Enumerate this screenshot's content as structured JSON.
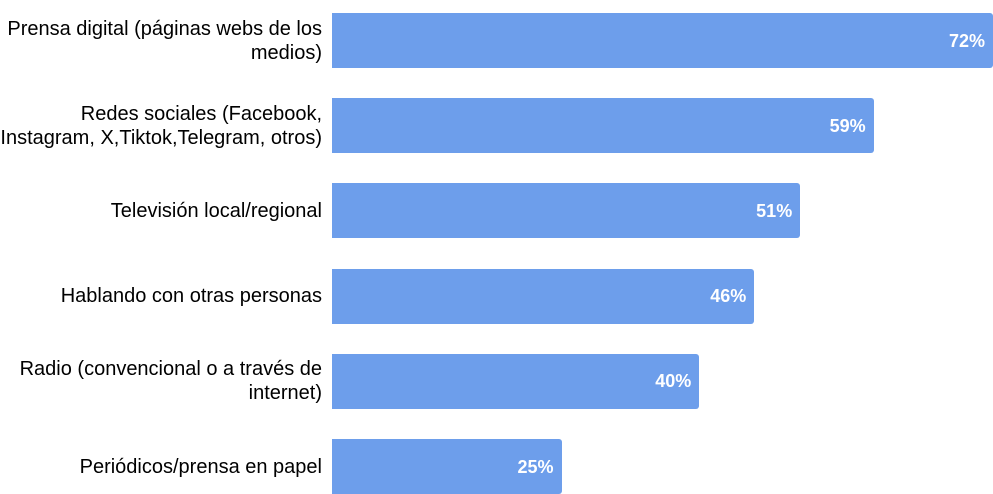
{
  "chart_data": {
    "type": "bar",
    "orientation": "horizontal",
    "categories": [
      "Prensa digital (páginas webs de los medios)",
      "Redes sociales (Facebook, Instagram, X,Tiktok,Telegram, otros)",
      "Televisión local/regional",
      "Hablando con otras personas",
      "Radio (convencional o a través de internet)",
      "Periódicos/prensa en papel"
    ],
    "values": [
      72,
      59,
      51,
      46,
      40,
      25
    ],
    "value_labels": [
      "72%",
      "59%",
      "51%",
      "46%",
      "40%",
      "25%"
    ],
    "title": "",
    "xlabel": "",
    "ylabel": "",
    "xlim": [
      0,
      72
    ],
    "grid": false,
    "legend": "none",
    "bar_color": "#6d9eeb",
    "label_color": "#ffffff"
  }
}
